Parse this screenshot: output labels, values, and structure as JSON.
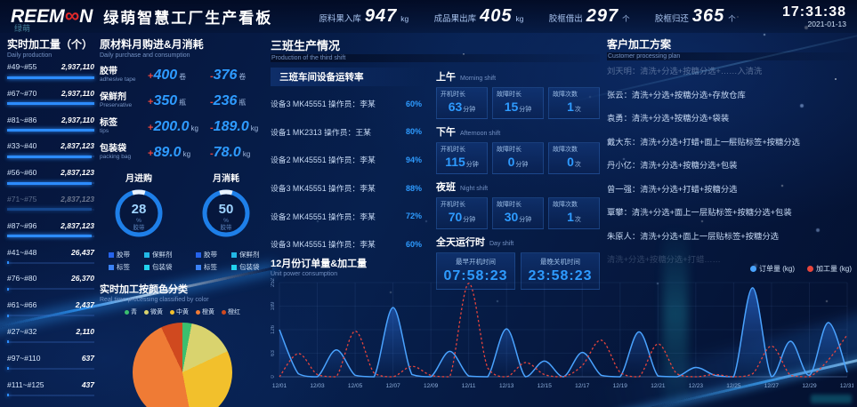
{
  "header": {
    "logo_left": "REEM",
    "logo_right": "N",
    "logo_sub": "绿萌",
    "title": "绿萌智慧工厂生产看板",
    "stats": [
      {
        "label": "原料果入库",
        "value": "947",
        "unit": "kg"
      },
      {
        "label": "成品果出库",
        "value": "405",
        "unit": "kg"
      },
      {
        "label": "胶框借出",
        "value": "297",
        "unit": "个"
      },
      {
        "label": "胶框归还",
        "value": "365",
        "unit": "个"
      }
    ],
    "time": "17:31:38",
    "date": "2021-01-13"
  },
  "production": {
    "title": "实时加工量（个）",
    "subtitle": "Daily production",
    "max": 2937110,
    "rows": [
      {
        "range": "#49~#55",
        "value": "2,937,110"
      },
      {
        "range": "#67~#70",
        "value": "2,937,110"
      },
      {
        "range": "#81~#86",
        "value": "2,937,110"
      },
      {
        "range": "#33~#40",
        "value": "2,837,123"
      },
      {
        "range": "#56~#60",
        "value": "2,837,123"
      },
      {
        "range": "#71~#75",
        "value": "2,837,123",
        "dim": true
      },
      {
        "range": "#87~#96",
        "value": "2,837,123"
      },
      {
        "range": "#41~#48",
        "value": "26,437"
      },
      {
        "range": "#76~#80",
        "value": "26,370"
      },
      {
        "range": "#61~#66",
        "value": "2,437"
      },
      {
        "range": "#27~#32",
        "value": "2,110"
      },
      {
        "range": "#97~#110",
        "value": "637"
      },
      {
        "range": "#111~#125",
        "value": "437"
      }
    ]
  },
  "materials": {
    "title": "原材料月购进&月消耗",
    "subtitle": "Daily purchase and consumption",
    "rows": [
      {
        "cn": "胶带",
        "en": "adhesive tape",
        "in_sign": "+",
        "in_val": "400",
        "in_unit": "卷",
        "out_sign": "-",
        "out_val": "376",
        "out_unit": "卷"
      },
      {
        "cn": "保鲜剂",
        "en": "Preservative",
        "in_sign": "+",
        "in_val": "350",
        "in_unit": "瓶",
        "out_sign": "-",
        "out_val": "236",
        "out_unit": "瓶"
      },
      {
        "cn": "标签",
        "en": "tips",
        "in_sign": "+",
        "in_val": "200.0",
        "in_unit": "kg",
        "out_sign": "-",
        "out_val": "189.0",
        "out_unit": "kg"
      },
      {
        "cn": "包装袋",
        "en": "packing bag",
        "in_sign": "+",
        "in_val": "89.0",
        "in_unit": "kg",
        "out_sign": "-",
        "out_val": "78.0",
        "out_unit": "kg"
      }
    ],
    "donuts": [
      {
        "title": "月进购",
        "value": "28",
        "unit": "%",
        "sub": "胶带",
        "pct": 28
      },
      {
        "title": "月消耗",
        "value": "50",
        "unit": "%",
        "sub": "胶带",
        "pct": 50
      }
    ],
    "legend": [
      {
        "label": "胶带",
        "color": "#2563eb"
      },
      {
        "label": "保鲜剂",
        "color": "#22b8e6"
      },
      {
        "label": "标签",
        "color": "#3b82f6"
      },
      {
        "label": "包装袋",
        "color": "#22d3ee"
      }
    ],
    "ring_color": "#1e7fe8"
  },
  "color_pie": {
    "title": "实时加工按颜色分类",
    "subtitle": "Real time processing classified by color",
    "chart_data": {
      "type": "pie",
      "slices": [
        {
          "label": "青",
          "value": 3,
          "color": "#3bbf6e"
        },
        {
          "label": "微黄",
          "value": 15,
          "color": "#d9d36e"
        },
        {
          "label": "中黄",
          "value": 29,
          "color": "#f2c02c"
        },
        {
          "label": "橙黄",
          "value": 46,
          "color": "#ef7b35"
        },
        {
          "label": "橙红",
          "value": 7,
          "color": "#d0491f"
        }
      ]
    }
  },
  "shift_panel": {
    "title": "三班生产情况",
    "subtitle": "Production of the third shift",
    "equipment_header": "三班车间设备运转率",
    "equipment": [
      {
        "name": "设备3 MK45551 操作员：李某",
        "rate": "60%"
      },
      {
        "name": "设备1 MK2313 操作员：王某",
        "rate": "80%"
      },
      {
        "name": "设备2 MK45551 操作员：李某",
        "rate": "94%"
      },
      {
        "name": "设备3 MK45551 操作员：李某",
        "rate": "88%"
      },
      {
        "name": "设备2 MK45551 操作员：李某",
        "rate": "72%"
      },
      {
        "name": "设备3 MK45551 操作员：李某",
        "rate": "60%"
      }
    ],
    "shifts": [
      {
        "cn": "上午",
        "en": "Morning shift",
        "stats": [
          {
            "label": "开机时长",
            "value": "63",
            "unit": "分钟"
          },
          {
            "label": "故障时长",
            "value": "15",
            "unit": "分钟"
          },
          {
            "label": "故障次数",
            "value": "1",
            "unit": "次"
          }
        ]
      },
      {
        "cn": "下午",
        "en": "Afternoon shift",
        "stats": [
          {
            "label": "开机时长",
            "value": "115",
            "unit": "分钟"
          },
          {
            "label": "故障时长",
            "value": "0",
            "unit": "分钟"
          },
          {
            "label": "故障次数",
            "value": "0",
            "unit": "次"
          }
        ]
      },
      {
        "cn": "夜班",
        "en": "Night shift",
        "stats": [
          {
            "label": "开机时长",
            "value": "70",
            "unit": "分钟"
          },
          {
            "label": "故障时长",
            "value": "30",
            "unit": "分钟"
          },
          {
            "label": "故障次数",
            "value": "1",
            "unit": "次"
          }
        ]
      }
    ],
    "day": {
      "cn": "全天运行时",
      "en": "Day shift",
      "boxes": [
        {
          "label": "最早开机时间",
          "value": "07:58:23"
        },
        {
          "label": "最晚关机时间",
          "value": "23:58:23"
        }
      ]
    }
  },
  "customers": {
    "title": "客户加工方案",
    "subtitle": "Customer processing plan",
    "rows": [
      {
        "text": "刘天明：清洗+分选+按糖分选+……入清洗",
        "dim": 1
      },
      {
        "text": "张云：清洗+分选+按糖分选+存放仓库",
        "dim": 0
      },
      {
        "text": "袁勇：清洗+分选+按糖分选+袋装",
        "dim": 0
      },
      {
        "text": "戴大东：清洗+分选+打蜡+面上一层贴标签+按糖分选",
        "dim": 0
      },
      {
        "text": "丹小亿：清洗+分选+按糖分选+包装",
        "dim": 0
      },
      {
        "text": "曾一强：清洗+分选+打蜡+按糖分选",
        "dim": 0
      },
      {
        "text": "覃攀：清洗+分选+面上一层贴标签+按糖分选+包装",
        "dim": 0
      },
      {
        "text": "朱原人：清洗+分选+面上一层贴标签+按糖分选",
        "dim": 0
      },
      {
        "text": "清洗+分选+按糖分选+打蜡……",
        "dim": 2
      }
    ]
  },
  "orders": {
    "title": "12月份订单量&加工量",
    "subtitle": "Unit power consumption",
    "chart_data": {
      "type": "line",
      "ylim": [
        0,
        252
      ],
      "yticks": [
        0,
        63,
        126,
        189,
        252
      ],
      "x_labels": [
        "12/01",
        "12/03",
        "12/05",
        "12/07",
        "12/09",
        "12/11",
        "12/13",
        "12/15",
        "12/17",
        "12/19",
        "12/21",
        "12/23",
        "12/25",
        "12/27",
        "12/29",
        "12/31"
      ],
      "series": [
        {
          "name": "订单量 (kg)",
          "color": "#4aa3ff",
          "style": "area",
          "values": [
            126,
            8,
            0,
            72,
            4,
            0,
            185,
            6,
            0,
            68,
            2,
            0,
            128,
            0,
            42,
            0,
            65,
            4,
            0,
            120,
            2,
            0,
            25,
            4,
            0,
            238,
            0,
            95,
            4,
            145,
            12
          ]
        },
        {
          "name": "加工量 (kg)",
          "color": "#e8453c",
          "style": "dotted",
          "values": [
            0,
            62,
            6,
            0,
            122,
            10,
            0,
            28,
            4,
            0,
            250,
            24,
            0,
            38,
            6,
            0,
            30,
            98,
            12,
            0,
            88,
            8,
            0,
            6,
            0,
            8,
            82,
            4,
            0,
            45,
            112
          ]
        }
      ]
    }
  }
}
